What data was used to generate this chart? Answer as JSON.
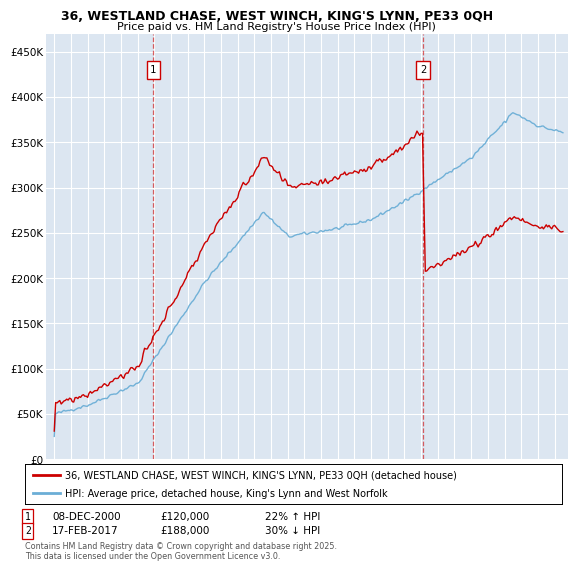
{
  "title_line1": "36, WESTLAND CHASE, WEST WINCH, KING'S LYNN, PE33 0QH",
  "title_line2": "Price paid vs. HM Land Registry's House Price Index (HPI)",
  "ylabel_ticks": [
    "£0",
    "£50K",
    "£100K",
    "£150K",
    "£200K",
    "£250K",
    "£300K",
    "£350K",
    "£400K",
    "£450K"
  ],
  "ytick_values": [
    0,
    50000,
    100000,
    150000,
    200000,
    250000,
    300000,
    350000,
    400000,
    450000
  ],
  "ylim": [
    0,
    470000
  ],
  "xlim_start": 1994.5,
  "xlim_end": 2025.8,
  "background_color": "#ffffff",
  "plot_bg_color": "#dce6f1",
  "grid_color": "#ffffff",
  "hpi_color": "#6baed6",
  "price_color": "#cc0000",
  "marker1_date": 2000.94,
  "marker2_date": 2017.12,
  "marker1_price": 120000,
  "marker2_price": 188000,
  "legend_label1": "36, WESTLAND CHASE, WEST WINCH, KING'S LYNN, PE33 0QH (detached house)",
  "legend_label2": "HPI: Average price, detached house, King's Lynn and West Norfolk",
  "note1_date": "08-DEC-2000",
  "note1_price": "£120,000",
  "note1_hpi": "22% ↑ HPI",
  "note2_date": "17-FEB-2017",
  "note2_price": "£188,000",
  "note2_hpi": "30% ↓ HPI",
  "footer": "Contains HM Land Registry data © Crown copyright and database right 2025.\nThis data is licensed under the Open Government Licence v3.0."
}
